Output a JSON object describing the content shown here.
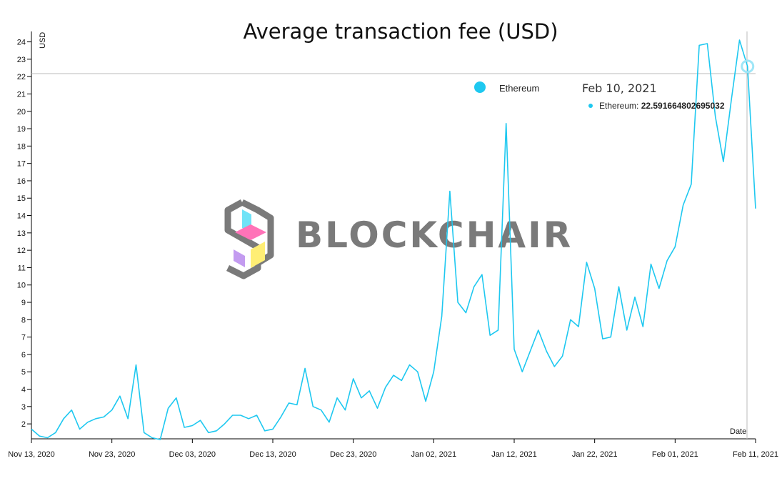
{
  "colors": {
    "series": "#1ec8f0",
    "axis": "#000000",
    "crosshair": "#bbbbbb",
    "watermark": "#7a7a7a"
  },
  "watermark": {
    "text": "BLOCKCHAIR"
  },
  "tooltip": {
    "date": "Feb 10, 2021",
    "series_label": "Ethereum:",
    "value": "22.591664802695032"
  },
  "chart_data": {
    "type": "line",
    "title": "Average transaction fee (USD)",
    "ylabel": "USD",
    "xlabel": "Date",
    "ylim": [
      1.14,
      24.6
    ],
    "xlim": [
      "2020-11-13",
      "2021-02-11"
    ],
    "y_ticks": [
      2,
      3,
      4,
      5,
      6,
      7,
      8,
      9,
      10,
      11,
      12,
      13,
      14,
      15,
      16,
      17,
      18,
      19,
      20,
      21,
      22,
      23,
      24
    ],
    "x_ticks": [
      {
        "date": "2020-11-13",
        "label": "Nov 13, 2020"
      },
      {
        "date": "2020-11-23",
        "label": "Nov 23, 2020"
      },
      {
        "date": "2020-12-03",
        "label": "Dec 03, 2020"
      },
      {
        "date": "2020-12-13",
        "label": "Dec 13, 2020"
      },
      {
        "date": "2020-12-23",
        "label": "Dec 23, 2020"
      },
      {
        "date": "2021-01-02",
        "label": "Jan 02, 2021"
      },
      {
        "date": "2021-01-12",
        "label": "Jan 12, 2021"
      },
      {
        "date": "2021-01-22",
        "label": "Jan 22, 2021"
      },
      {
        "date": "2021-02-01",
        "label": "Feb 01, 2021"
      },
      {
        "date": "2021-02-11",
        "label": "Feb 11, 2021"
      }
    ],
    "legend": {
      "position": "top-right"
    },
    "grid": false,
    "series": [
      {
        "name": "Ethereum",
        "x": [
          "2020-11-13",
          "2020-11-14",
          "2020-11-15",
          "2020-11-16",
          "2020-11-17",
          "2020-11-18",
          "2020-11-19",
          "2020-11-20",
          "2020-11-21",
          "2020-11-22",
          "2020-11-23",
          "2020-11-24",
          "2020-11-25",
          "2020-11-26",
          "2020-11-27",
          "2020-11-28",
          "2020-11-29",
          "2020-11-30",
          "2020-12-01",
          "2020-12-02",
          "2020-12-03",
          "2020-12-04",
          "2020-12-05",
          "2020-12-06",
          "2020-12-07",
          "2020-12-08",
          "2020-12-09",
          "2020-12-10",
          "2020-12-11",
          "2020-12-12",
          "2020-12-13",
          "2020-12-14",
          "2020-12-15",
          "2020-12-16",
          "2020-12-17",
          "2020-12-18",
          "2020-12-19",
          "2020-12-20",
          "2020-12-21",
          "2020-12-22",
          "2020-12-23",
          "2020-12-24",
          "2020-12-25",
          "2020-12-26",
          "2020-12-27",
          "2020-12-28",
          "2020-12-29",
          "2020-12-30",
          "2020-12-31",
          "2021-01-01",
          "2021-01-02",
          "2021-01-03",
          "2021-01-04",
          "2021-01-05",
          "2021-01-06",
          "2021-01-07",
          "2021-01-08",
          "2021-01-09",
          "2021-01-10",
          "2021-01-11",
          "2021-01-12",
          "2021-01-13",
          "2021-01-14",
          "2021-01-15",
          "2021-01-16",
          "2021-01-17",
          "2021-01-18",
          "2021-01-19",
          "2021-01-20",
          "2021-01-21",
          "2021-01-22",
          "2021-01-23",
          "2021-01-24",
          "2021-01-25",
          "2021-01-26",
          "2021-01-27",
          "2021-01-28",
          "2021-01-29",
          "2021-01-30",
          "2021-01-31",
          "2021-02-01",
          "2021-02-02",
          "2021-02-03",
          "2021-02-04",
          "2021-02-05",
          "2021-02-06",
          "2021-02-07",
          "2021-02-08",
          "2021-02-09",
          "2021-02-10",
          "2021-02-11"
        ],
        "values": [
          1.7,
          1.3,
          1.2,
          1.5,
          2.3,
          2.8,
          1.7,
          2.1,
          2.3,
          2.4,
          2.8,
          3.6,
          2.3,
          5.4,
          1.5,
          1.2,
          1.1,
          2.9,
          3.5,
          1.8,
          1.9,
          2.2,
          1.5,
          1.6,
          2.0,
          2.5,
          2.5,
          2.3,
          2.5,
          1.6,
          1.7,
          2.4,
          3.2,
          3.1,
          5.2,
          3.0,
          2.8,
          2.1,
          3.5,
          2.8,
          4.6,
          3.5,
          3.9,
          2.9,
          4.1,
          4.8,
          4.5,
          5.4,
          5.0,
          3.3,
          5.0,
          8.2,
          15.4,
          9.0,
          8.4,
          9.9,
          10.6,
          7.1,
          7.4,
          19.3,
          6.3,
          5.0,
          6.2,
          7.4,
          6.2,
          5.3,
          5.9,
          8.0,
          7.6,
          11.3,
          9.8,
          6.9,
          7.0,
          9.9,
          7.4,
          9.3,
          7.6,
          11.2,
          9.8,
          11.4,
          12.2,
          14.6,
          15.8,
          23.8,
          23.9,
          19.7,
          17.1,
          20.7,
          24.1,
          22.59,
          14.4
        ]
      }
    ]
  }
}
